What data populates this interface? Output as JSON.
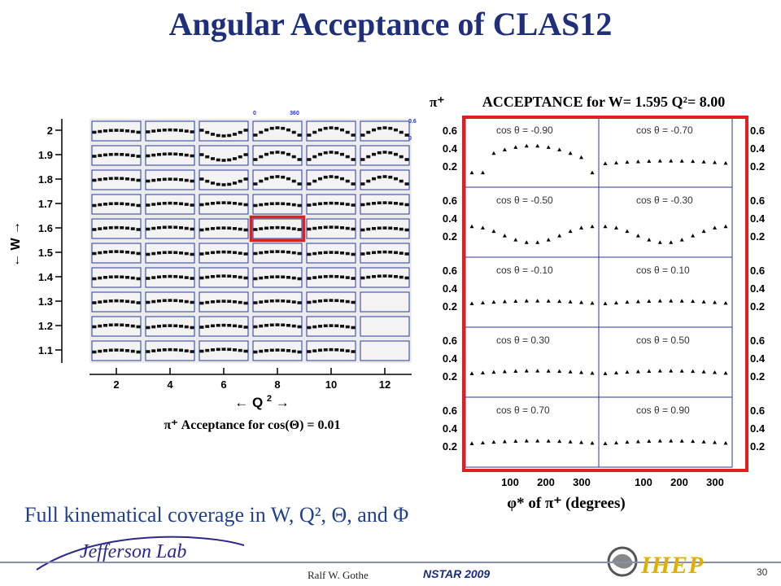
{
  "title": "Angular Acceptance of CLAS12",
  "left_plot": {
    "w_axis_label": "← W →",
    "q2_axis_label_left": "← Q",
    "q2_sup": "2",
    "q2_axis_label_right": "→",
    "w_ticks": [
      "2",
      "1.9",
      "1.8",
      "1.7",
      "1.6",
      "1.5",
      "1.4",
      "1.3",
      "1.2",
      "1.1"
    ],
    "q2_ticks": [
      "2",
      "4",
      "6",
      "8",
      "10",
      "12"
    ],
    "inset_scale_x": [
      "0",
      "360"
    ],
    "inset_scale_y": [
      "0.6",
      "0"
    ],
    "caption": "π⁺ Acceptance  for cos(Θ) = 0.01",
    "highlight_cell": {
      "row": 4,
      "col": 3
    }
  },
  "right_plot": {
    "particle": "π⁺",
    "title": "ACCEPTANCE for W= 1.595 Q²= 8.00",
    "panels": [
      {
        "label": "cos θ = -0.90"
      },
      {
        "label": "cos θ = -0.70"
      },
      {
        "label": "cos θ = -0.50"
      },
      {
        "label": "cos θ = -0.30"
      },
      {
        "label": "cos θ = -0.10"
      },
      {
        "label": "cos θ = 0.10"
      },
      {
        "label": "cos θ = 0.30"
      },
      {
        "label": "cos θ = 0.50"
      },
      {
        "label": "cos θ = 0.70"
      },
      {
        "label": "cos θ = 0.90"
      }
    ],
    "y_ticks": [
      "0.6",
      "0.4",
      "0.2"
    ],
    "x_ticks": [
      "100",
      "200",
      "300",
      "100",
      "200",
      "300"
    ],
    "x_axis_label": "φ*  of  π⁺  (degrees)"
  },
  "coverage_text": "Full kinematical  coverage  in W, Q², Θ, and Φ",
  "footer": {
    "author": "Ralf  W. Gothe",
    "conference": "NSTAR 2009",
    "page": "30",
    "logo_left": "Jefferson Lab",
    "logo_right": "IHEP"
  }
}
